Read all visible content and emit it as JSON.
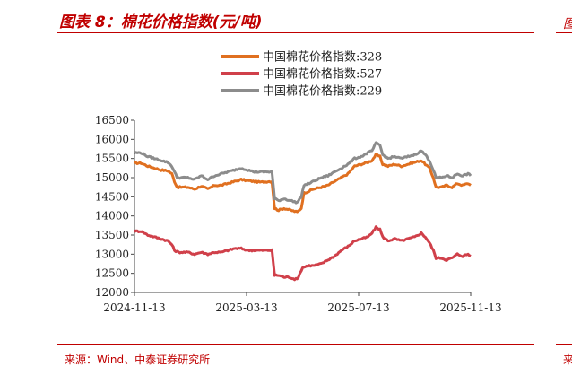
{
  "header": {
    "title": "图表 8：棉花价格指数(元/吨)"
  },
  "footer": {
    "source": "来源：Wind、中泰证券研究所"
  },
  "side": {
    "top_glyph": "图",
    "bottom_glyph": "来"
  },
  "colors": {
    "accent": "#c00000",
    "series328": "#E07020",
    "series527": "#D0404A",
    "series229": "#8C8C8C"
  },
  "chart_data": {
    "type": "line",
    "title": "",
    "xlabel": "",
    "ylabel": "",
    "ylim": [
      12000,
      16500
    ],
    "yticks": [
      12000,
      12500,
      13000,
      13500,
      14000,
      14500,
      15000,
      15500,
      16000,
      16500
    ],
    "xticks": [
      "2024-11-13",
      "2025-03-13",
      "2025-07-13",
      "2025-11-13"
    ],
    "x_count": 252,
    "legend_position": "top",
    "series": [
      {
        "name": "中国棉花价格指数:328",
        "color": "#E07020",
        "anchors": [
          [
            0,
            15380
          ],
          [
            5,
            15380
          ],
          [
            10,
            15300
          ],
          [
            15,
            15250
          ],
          [
            20,
            15200
          ],
          [
            25,
            15180
          ],
          [
            28,
            15100
          ],
          [
            30,
            14900
          ],
          [
            32,
            14750
          ],
          [
            40,
            14750
          ],
          [
            45,
            14700
          ],
          [
            50,
            14780
          ],
          [
            55,
            14700
          ],
          [
            60,
            14800
          ],
          [
            65,
            14800
          ],
          [
            70,
            14850
          ],
          [
            75,
            14900
          ],
          [
            80,
            14950
          ],
          [
            85,
            14920
          ],
          [
            90,
            14900
          ],
          [
            95,
            14880
          ],
          [
            100,
            14900
          ],
          [
            103,
            14900
          ],
          [
            105,
            14200
          ],
          [
            108,
            14150
          ],
          [
            112,
            14200
          ],
          [
            117,
            14150
          ],
          [
            122,
            14100
          ],
          [
            125,
            14200
          ],
          [
            127,
            14600
          ],
          [
            131,
            14650
          ],
          [
            134,
            14700
          ],
          [
            140,
            14750
          ],
          [
            145,
            14800
          ],
          [
            150,
            14900
          ],
          [
            155,
            15000
          ],
          [
            160,
            15100
          ],
          [
            165,
            15300
          ],
          [
            170,
            15350
          ],
          [
            175,
            15400
          ],
          [
            178,
            15450
          ],
          [
            181,
            15600
          ],
          [
            184,
            15550
          ],
          [
            186,
            15350
          ],
          [
            190,
            15300
          ],
          [
            195,
            15350
          ],
          [
            200,
            15300
          ],
          [
            205,
            15350
          ],
          [
            210,
            15400
          ],
          [
            215,
            15450
          ],
          [
            218,
            15350
          ],
          [
            221,
            15250
          ],
          [
            224,
            15000
          ],
          [
            226,
            14750
          ],
          [
            230,
            14750
          ],
          [
            234,
            14800
          ],
          [
            238,
            14750
          ],
          [
            242,
            14850
          ],
          [
            246,
            14800
          ],
          [
            250,
            14850
          ],
          [
            252,
            14800
          ]
        ]
      },
      {
        "name": "中国棉花价格指数:527",
        "color": "#D0404A",
        "anchors": [
          [
            0,
            13600
          ],
          [
            5,
            13600
          ],
          [
            10,
            13500
          ],
          [
            15,
            13450
          ],
          [
            20,
            13400
          ],
          [
            25,
            13350
          ],
          [
            28,
            13250
          ],
          [
            30,
            13100
          ],
          [
            33,
            13050
          ],
          [
            40,
            13050
          ],
          [
            45,
            13000
          ],
          [
            50,
            13050
          ],
          [
            55,
            13000
          ],
          [
            60,
            13050
          ],
          [
            65,
            13050
          ],
          [
            70,
            13100
          ],
          [
            75,
            13150
          ],
          [
            80,
            13150
          ],
          [
            85,
            13100
          ],
          [
            90,
            13100
          ],
          [
            95,
            13100
          ],
          [
            100,
            13100
          ],
          [
            103,
            13100
          ],
          [
            105,
            12450
          ],
          [
            108,
            12450
          ],
          [
            112,
            12400
          ],
          [
            116,
            12400
          ],
          [
            120,
            12350
          ],
          [
            122,
            12350
          ],
          [
            124,
            12500
          ],
          [
            126,
            12650
          ],
          [
            130,
            12700
          ],
          [
            134,
            12700
          ],
          [
            140,
            12750
          ],
          [
            145,
            12850
          ],
          [
            150,
            12950
          ],
          [
            155,
            13100
          ],
          [
            160,
            13200
          ],
          [
            165,
            13350
          ],
          [
            170,
            13400
          ],
          [
            175,
            13450
          ],
          [
            178,
            13550
          ],
          [
            181,
            13700
          ],
          [
            184,
            13650
          ],
          [
            186,
            13450
          ],
          [
            190,
            13350
          ],
          [
            195,
            13400
          ],
          [
            200,
            13350
          ],
          [
            205,
            13400
          ],
          [
            210,
            13450
          ],
          [
            215,
            13550
          ],
          [
            218,
            13450
          ],
          [
            221,
            13300
          ],
          [
            224,
            13100
          ],
          [
            226,
            12900
          ],
          [
            230,
            12900
          ],
          [
            234,
            12850
          ],
          [
            238,
            12900
          ],
          [
            242,
            13000
          ],
          [
            246,
            12950
          ],
          [
            250,
            13000
          ],
          [
            252,
            12950
          ]
        ]
      },
      {
        "name": "中国棉花价格指数:229",
        "color": "#8C8C8C",
        "anchors": [
          [
            0,
            15650
          ],
          [
            5,
            15650
          ],
          [
            10,
            15550
          ],
          [
            15,
            15500
          ],
          [
            20,
            15450
          ],
          [
            25,
            15400
          ],
          [
            28,
            15300
          ],
          [
            30,
            15150
          ],
          [
            32,
            15000
          ],
          [
            40,
            15000
          ],
          [
            45,
            14950
          ],
          [
            50,
            15050
          ],
          [
            55,
            14950
          ],
          [
            60,
            15050
          ],
          [
            65,
            15100
          ],
          [
            70,
            15150
          ],
          [
            75,
            15200
          ],
          [
            80,
            15250
          ],
          [
            85,
            15200
          ],
          [
            90,
            15150
          ],
          [
            95,
            15150
          ],
          [
            100,
            15150
          ],
          [
            103,
            15150
          ],
          [
            105,
            14450
          ],
          [
            108,
            14400
          ],
          [
            112,
            14450
          ],
          [
            117,
            14400
          ],
          [
            122,
            14350
          ],
          [
            125,
            14500
          ],
          [
            127,
            14800
          ],
          [
            131,
            14850
          ],
          [
            134,
            14900
          ],
          [
            140,
            15000
          ],
          [
            145,
            15050
          ],
          [
            150,
            15150
          ],
          [
            155,
            15250
          ],
          [
            160,
            15350
          ],
          [
            165,
            15500
          ],
          [
            170,
            15550
          ],
          [
            175,
            15650
          ],
          [
            178,
            15700
          ],
          [
            181,
            15900
          ],
          [
            184,
            15850
          ],
          [
            186,
            15600
          ],
          [
            190,
            15500
          ],
          [
            195,
            15550
          ],
          [
            200,
            15500
          ],
          [
            205,
            15550
          ],
          [
            210,
            15600
          ],
          [
            215,
            15700
          ],
          [
            218,
            15600
          ],
          [
            221,
            15450
          ],
          [
            224,
            15200
          ],
          [
            226,
            15000
          ],
          [
            230,
            15000
          ],
          [
            234,
            15050
          ],
          [
            238,
            15000
          ],
          [
            242,
            15100
          ],
          [
            246,
            15050
          ],
          [
            250,
            15100
          ],
          [
            252,
            15050
          ]
        ]
      }
    ]
  }
}
